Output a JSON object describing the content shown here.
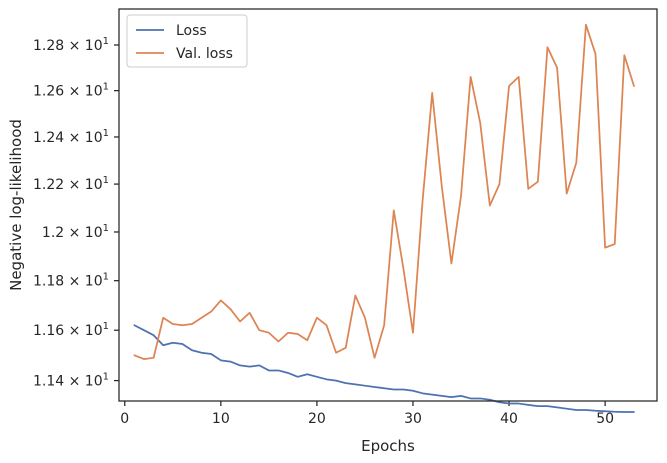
{
  "chart_data": {
    "type": "line",
    "xlabel": "Epochs",
    "ylabel": "Negative log-likelihood",
    "xlim": [
      -0.6,
      55.4
    ],
    "ylim": [
      11.32,
      12.96
    ],
    "y_scale": "log",
    "x_ticks": [
      0,
      10,
      20,
      30,
      40,
      50
    ],
    "y_ticks": [
      {
        "value": 11.4,
        "mantissa": "1.14",
        "base": "10",
        "exp": "1"
      },
      {
        "value": 11.6,
        "mantissa": "1.16",
        "base": "10",
        "exp": "1"
      },
      {
        "value": 11.8,
        "mantissa": "1.18",
        "base": "10",
        "exp": "1"
      },
      {
        "value": 12.0,
        "mantissa": "1.2",
        "base": "10",
        "exp": "1"
      },
      {
        "value": 12.2,
        "mantissa": "1.22",
        "base": "10",
        "exp": "1"
      },
      {
        "value": 12.4,
        "mantissa": "1.24",
        "base": "10",
        "exp": "1"
      },
      {
        "value": 12.6,
        "mantissa": "1.26",
        "base": "10",
        "exp": "1"
      },
      {
        "value": 12.8,
        "mantissa": "1.28",
        "base": "10",
        "exp": "1"
      }
    ],
    "grid": false,
    "legend_position": "top-left",
    "x": [
      1,
      2,
      3,
      4,
      5,
      6,
      7,
      8,
      9,
      10,
      11,
      12,
      13,
      14,
      15,
      16,
      17,
      18,
      19,
      20,
      21,
      22,
      23,
      24,
      25,
      26,
      27,
      28,
      29,
      30,
      31,
      32,
      33,
      34,
      35,
      36,
      37,
      38,
      39,
      40,
      41,
      42,
      43,
      44,
      45,
      46,
      47,
      48,
      49,
      50,
      51,
      52,
      53
    ],
    "series": [
      {
        "name": "Loss",
        "color": "#4c72b0",
        "values": [
          11.62,
          11.6,
          11.58,
          11.54,
          11.55,
          11.545,
          11.52,
          11.51,
          11.505,
          11.48,
          11.475,
          11.46,
          11.455,
          11.46,
          11.44,
          11.44,
          11.43,
          11.415,
          11.425,
          11.415,
          11.405,
          11.4,
          11.39,
          11.385,
          11.38,
          11.375,
          11.37,
          11.365,
          11.365,
          11.36,
          11.35,
          11.345,
          11.34,
          11.335,
          11.34,
          11.33,
          11.33,
          11.325,
          11.315,
          11.31,
          11.31,
          11.305,
          11.3,
          11.3,
          11.295,
          11.29,
          11.285,
          11.285,
          11.282,
          11.28,
          11.278,
          11.277,
          11.277
        ]
      },
      {
        "name": "Val. loss",
        "color": "#dd8452",
        "values": [
          11.5,
          11.485,
          11.49,
          11.65,
          11.625,
          11.62,
          11.625,
          11.65,
          11.675,
          11.72,
          11.685,
          11.635,
          11.67,
          11.6,
          11.59,
          11.555,
          11.59,
          11.585,
          11.56,
          11.65,
          11.62,
          11.51,
          11.53,
          11.74,
          11.65,
          11.49,
          11.62,
          12.09,
          11.85,
          11.59,
          12.13,
          12.59,
          12.19,
          11.87,
          12.15,
          12.66,
          12.46,
          12.11,
          12.2,
          12.62,
          12.66,
          12.18,
          12.21,
          12.79,
          12.7,
          12.16,
          12.29,
          12.89,
          12.76,
          11.935,
          11.95,
          12.755,
          12.62
        ]
      }
    ]
  }
}
